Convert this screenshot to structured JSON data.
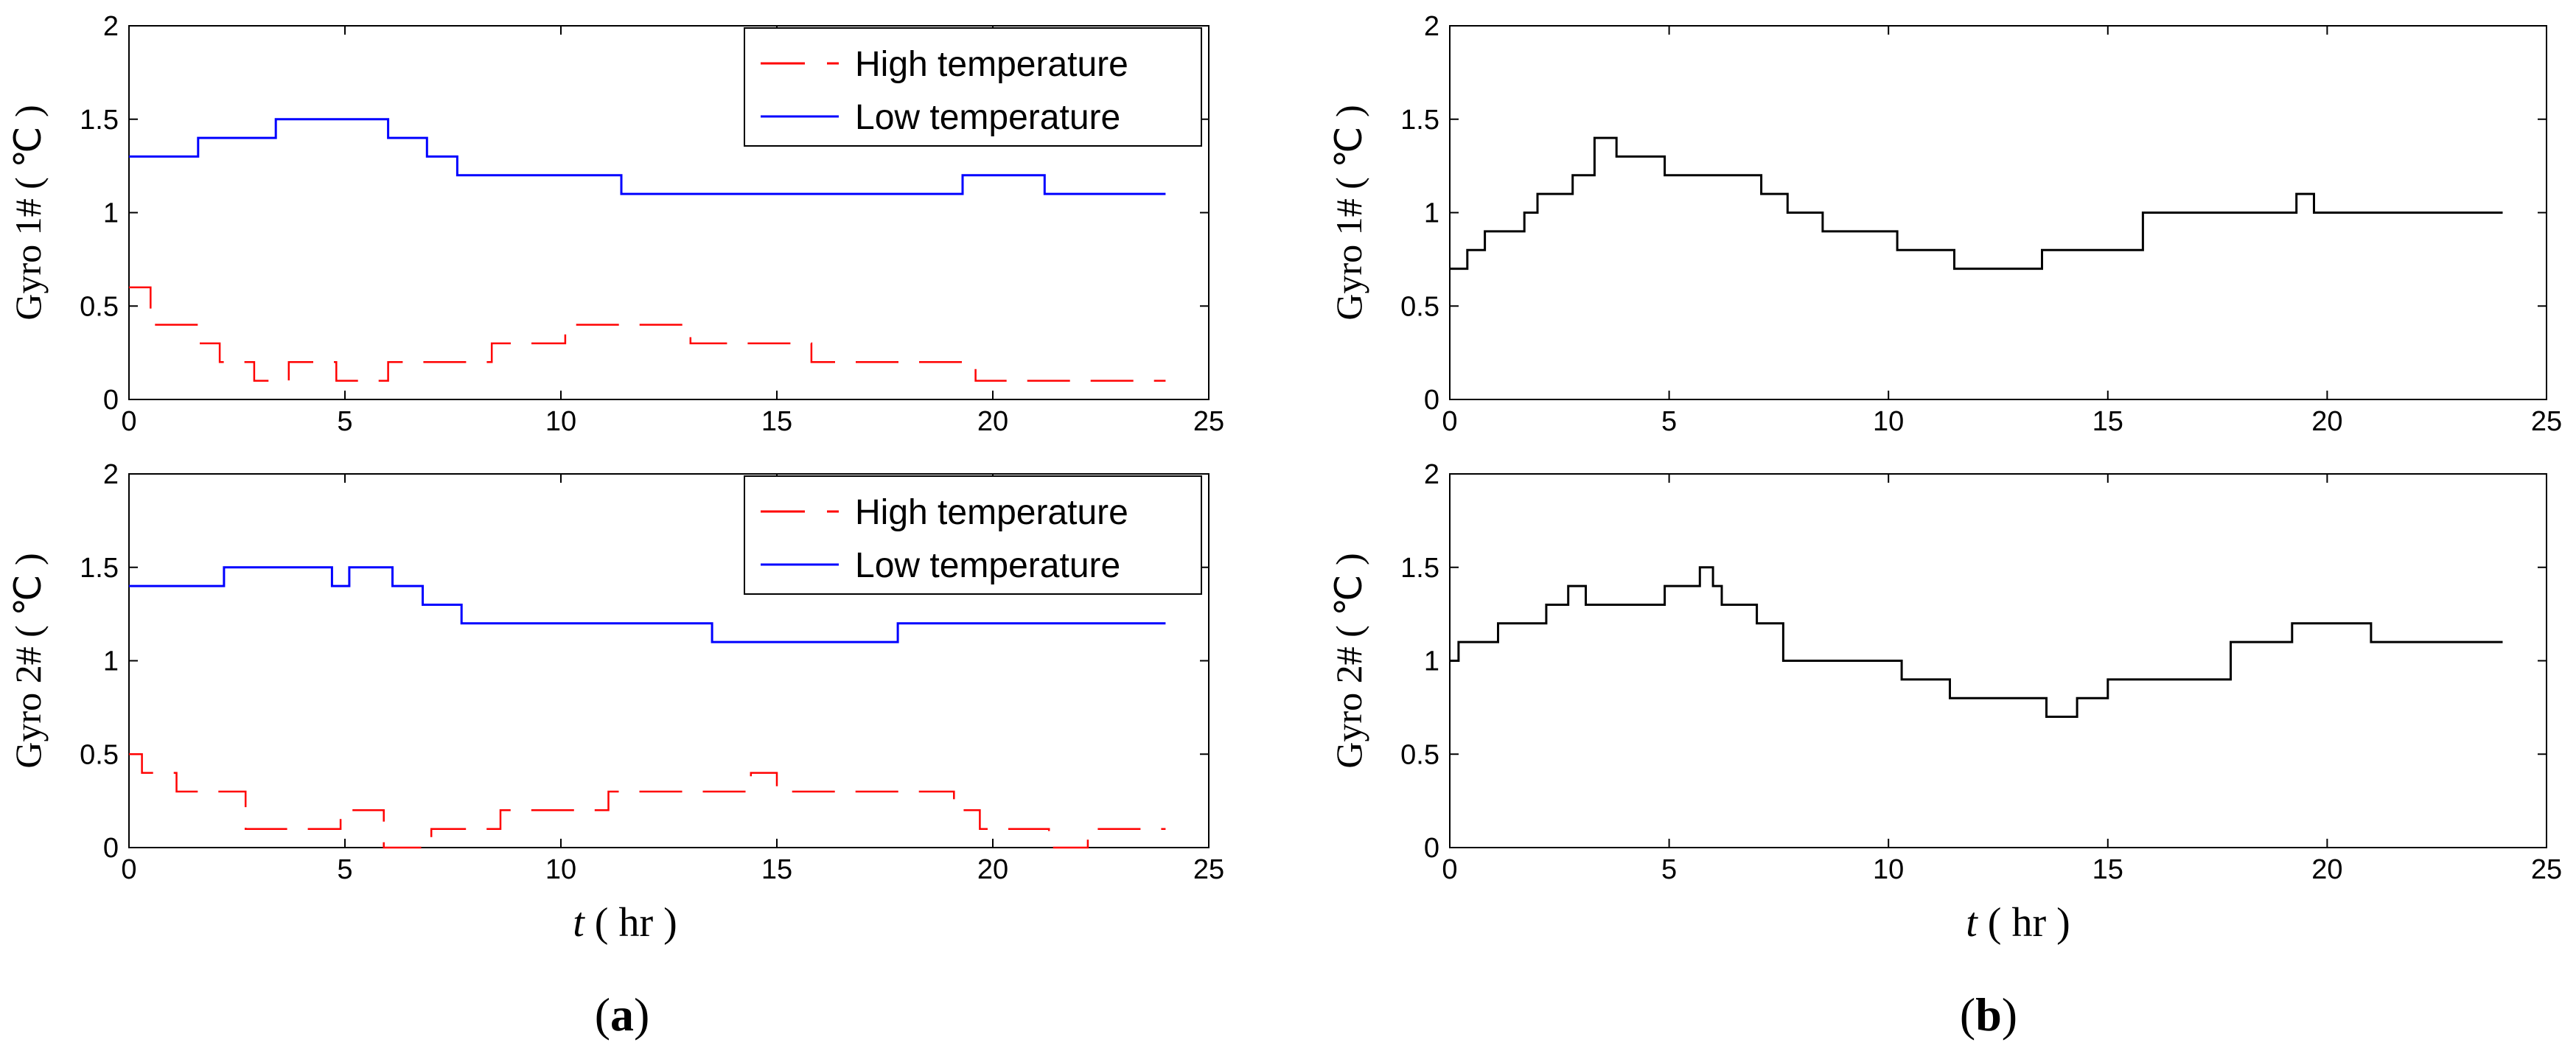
{
  "chart_data": [
    {
      "id": "a-top",
      "type": "line",
      "ylabel": "Gyro 1# ( ℃ )",
      "xlabel": "",
      "xlim": [
        0,
        25
      ],
      "ylim": [
        0,
        2
      ],
      "xticks": [
        0,
        5,
        10,
        15,
        20,
        25
      ],
      "yticks": [
        0,
        0.5,
        1,
        1.5,
        2
      ],
      "ytick_labels": [
        "0",
        "0.5",
        "1",
        "1.5",
        "2"
      ],
      "legend_position": "top-right",
      "series": [
        {
          "name": "High temperature",
          "color": "#ff0000",
          "style": "dashed",
          "x": [
            0,
            0.5,
            0.5,
            1.6,
            1.6,
            2.1,
            2.1,
            2.9,
            2.9,
            3.7,
            3.7,
            4.8,
            4.8,
            6.0,
            6.0,
            8.4,
            8.4,
            10.1,
            10.1,
            13.0,
            13.0,
            15.8,
            15.8,
            19.6,
            19.6,
            20.5,
            20.5,
            24.0
          ],
          "y": [
            0.6,
            0.6,
            0.4,
            0.4,
            0.3,
            0.3,
            0.2,
            0.2,
            0.1,
            0.1,
            0.2,
            0.2,
            0.1,
            0.1,
            0.2,
            0.2,
            0.3,
            0.3,
            0.4,
            0.4,
            0.3,
            0.3,
            0.2,
            0.2,
            0.1,
            0.1,
            0.1,
            0.1
          ]
        },
        {
          "name": "Low temperature",
          "color": "#0000ff",
          "style": "solid",
          "x": [
            0,
            1.6,
            1.6,
            3.4,
            3.4,
            4.3,
            4.3,
            6.0,
            6.0,
            6.9,
            6.9,
            7.6,
            7.6,
            11.4,
            11.4,
            19.3,
            19.3,
            21.2,
            21.2,
            21.9,
            21.9,
            24.0
          ],
          "y": [
            1.3,
            1.3,
            1.4,
            1.4,
            1.5,
            1.5,
            1.5,
            1.5,
            1.4,
            1.4,
            1.3,
            1.3,
            1.2,
            1.2,
            1.1,
            1.1,
            1.2,
            1.2,
            1.1,
            1.1,
            1.1,
            1.1
          ]
        }
      ]
    },
    {
      "id": "a-bottom",
      "type": "line",
      "ylabel": "Gyro 2# ( ℃ )",
      "xlabel": "t ( hr )",
      "xlim": [
        0,
        25
      ],
      "ylim": [
        0,
        2
      ],
      "xticks": [
        0,
        5,
        10,
        15,
        20,
        25
      ],
      "yticks": [
        0,
        0.5,
        1,
        1.5,
        2
      ],
      "ytick_labels": [
        "0",
        "0.5",
        "1",
        "1.5",
        "2"
      ],
      "legend_position": "top-right",
      "series": [
        {
          "name": "High temperature",
          "color": "#ff0000",
          "style": "dashed",
          "x": [
            0,
            0.3,
            0.3,
            1.1,
            1.1,
            2.7,
            2.7,
            4.9,
            4.9,
            5.9,
            5.9,
            7.0,
            7.0,
            8.6,
            8.6,
            11.1,
            11.1,
            14.4,
            14.4,
            15.0,
            15.0,
            19.1,
            19.1,
            19.7,
            19.7,
            21.3,
            21.3,
            22.2,
            22.2,
            24.0
          ],
          "y": [
            0.5,
            0.5,
            0.4,
            0.4,
            0.3,
            0.3,
            0.1,
            0.1,
            0.2,
            0.2,
            0.0,
            0.0,
            0.1,
            0.1,
            0.2,
            0.2,
            0.3,
            0.3,
            0.4,
            0.4,
            0.3,
            0.3,
            0.2,
            0.2,
            0.1,
            0.1,
            0.0,
            0.0,
            0.1,
            0.1
          ]
        },
        {
          "name": "Low temperature",
          "color": "#0000ff",
          "style": "solid",
          "x": [
            0,
            2.2,
            2.2,
            4.7,
            4.7,
            5.1,
            5.1,
            6.1,
            6.1,
            6.8,
            6.8,
            7.7,
            7.7,
            9.6,
            9.6,
            10.1,
            10.1,
            13.5,
            13.5,
            17.8,
            17.8,
            24.0
          ],
          "y": [
            1.4,
            1.4,
            1.5,
            1.5,
            1.4,
            1.4,
            1.5,
            1.5,
            1.4,
            1.4,
            1.3,
            1.3,
            1.2,
            1.2,
            1.2,
            1.2,
            1.2,
            1.2,
            1.1,
            1.1,
            1.2,
            1.2
          ]
        }
      ]
    },
    {
      "id": "b-top",
      "type": "line",
      "ylabel": "Gyro 1# ( ℃ )",
      "xlabel": "",
      "xlim": [
        0,
        25
      ],
      "ylim": [
        0,
        2
      ],
      "xticks": [
        0,
        5,
        10,
        15,
        20,
        25
      ],
      "yticks": [
        0,
        0.5,
        1,
        1.5,
        2
      ],
      "ytick_labels": [
        "0",
        "0.5",
        "1",
        "1.5",
        "2"
      ],
      "series": [
        {
          "name": "Gyro 1#",
          "color": "#000000",
          "style": "solid",
          "x": [
            0,
            0.4,
            0.4,
            0.8,
            0.8,
            1.7,
            1.7,
            2.0,
            2.0,
            2.8,
            2.8,
            3.3,
            3.3,
            3.8,
            3.8,
            4.9,
            4.9,
            7.1,
            7.1,
            7.7,
            7.7,
            8.5,
            8.5,
            10.2,
            10.2,
            11.5,
            11.5,
            13.5,
            13.5,
            15.8,
            15.8,
            19.3,
            19.3,
            19.7,
            19.7,
            21.7,
            21.7,
            24.0
          ],
          "y": [
            0.7,
            0.7,
            0.8,
            0.8,
            0.9,
            0.9,
            1.0,
            1.0,
            1.1,
            1.1,
            1.2,
            1.2,
            1.4,
            1.4,
            1.3,
            1.3,
            1.2,
            1.2,
            1.1,
            1.1,
            1.0,
            1.0,
            0.9,
            0.9,
            0.8,
            0.8,
            0.7,
            0.7,
            0.8,
            0.8,
            1.0,
            1.0,
            1.1,
            1.1,
            1.0,
            1.0,
            1.0,
            1.0
          ]
        }
      ]
    },
    {
      "id": "b-bottom",
      "type": "line",
      "ylabel": "Gyro 2# ( ℃ )",
      "xlabel": "t ( hr )",
      "xlim": [
        0,
        25
      ],
      "ylim": [
        0,
        2
      ],
      "xticks": [
        0,
        5,
        10,
        15,
        20,
        25
      ],
      "yticks": [
        0,
        0.5,
        1,
        1.5,
        2
      ],
      "ytick_labels": [
        "0",
        "0.5",
        "1",
        "1.5",
        "2"
      ],
      "series": [
        {
          "name": "Gyro 2#",
          "color": "#000000",
          "style": "solid",
          "x": [
            0,
            0.2,
            0.2,
            1.1,
            1.1,
            2.2,
            2.2,
            2.7,
            2.7,
            3.1,
            3.1,
            4.9,
            4.9,
            5.7,
            5.7,
            6.0,
            6.0,
            6.2,
            6.2,
            7.0,
            7.0,
            7.6,
            7.6,
            8.5,
            8.5,
            10.3,
            10.3,
            11.4,
            11.4,
            13.6,
            13.6,
            14.3,
            14.3,
            15.0,
            15.0,
            17.8,
            17.8,
            19.2,
            19.2,
            21.0,
            21.0,
            21.9,
            21.9,
            24.0
          ],
          "y": [
            1.0,
            1.0,
            1.1,
            1.1,
            1.2,
            1.2,
            1.3,
            1.3,
            1.4,
            1.4,
            1.3,
            1.3,
            1.4,
            1.4,
            1.5,
            1.5,
            1.4,
            1.4,
            1.3,
            1.3,
            1.2,
            1.2,
            1.0,
            1.0,
            1.0,
            1.0,
            0.9,
            0.9,
            0.8,
            0.8,
            0.7,
            0.7,
            0.8,
            0.8,
            0.9,
            0.9,
            1.1,
            1.1,
            1.2,
            1.2,
            1.1,
            1.1,
            1.1,
            1.1
          ]
        }
      ]
    }
  ],
  "panel_labels": {
    "a": "a",
    "b": "b"
  }
}
